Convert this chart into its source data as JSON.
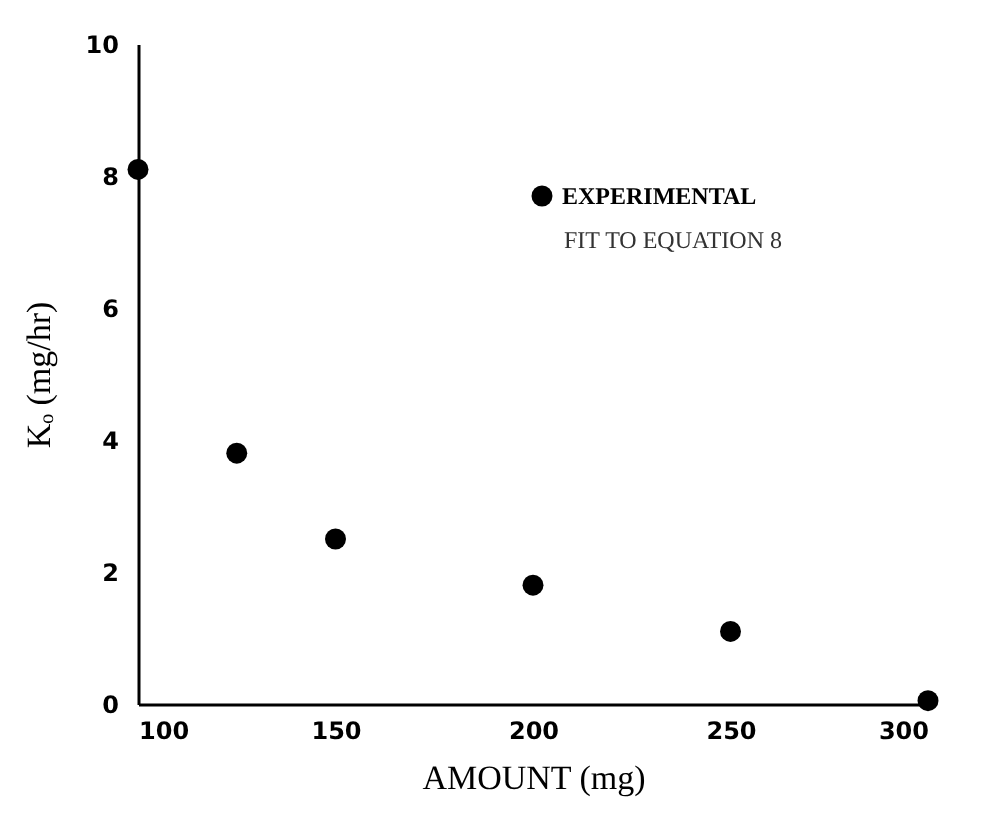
{
  "chart_data": {
    "type": "scatter",
    "xlabel": "AMOUNT (mg)",
    "ylabel": "Kₒ (mg/hr)",
    "x": [
      100,
      125,
      150,
      200,
      250,
      300
    ],
    "series": [
      {
        "name": "EXPERIMENTAL",
        "color": "#000000",
        "values": [
          8.1,
          3.8,
          2.5,
          1.8,
          1.1,
          0.05
        ]
      }
    ],
    "xlim": [
      100,
      300
    ],
    "xticks": [
      100,
      150,
      200,
      250,
      300
    ],
    "ylim": [
      0,
      10
    ],
    "yticks": [
      0,
      2,
      4,
      6,
      8,
      10
    ],
    "grid": false,
    "legend": "top right",
    "marker": "circle",
    "annotations": [
      "FIT TO EQUATION 8"
    ]
  }
}
